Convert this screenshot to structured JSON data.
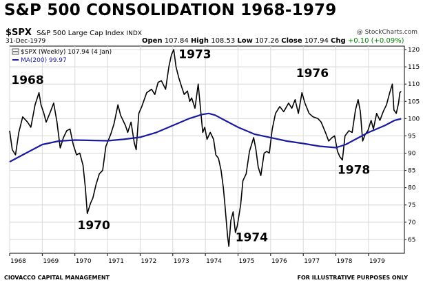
{
  "header": {
    "title": "S&P 500 CONSOLIDATION 1968-1979",
    "symbol": "$SPX",
    "name": "S&P 500 Large Cap Index",
    "exchange": "INDX",
    "credit": "@ StockCharts.com",
    "date": "31-Dec-1979",
    "open_label": "Open",
    "open": "107.84",
    "high_label": "High",
    "high": "108.53",
    "low_label": "Low",
    "low": "107.26",
    "close_label": "Close",
    "close": "107.94",
    "chg_label": "Chg",
    "chg": "+0.10 (+0.09%)"
  },
  "footer": {
    "left": "CIOVACCO CAPITAL MANAGEMENT",
    "right": "FOR ILLUSTRATIVE PURPOSES ONLY"
  },
  "colors": {
    "price": "#000000",
    "ma": "#1a1aa0",
    "grid": "#d8d8d8"
  },
  "chart_data": {
    "type": "line",
    "legend_position": "top-left",
    "grid": true,
    "xlim": [
      1968.0,
      1980.1
    ],
    "ylim": [
      61,
      121
    ],
    "x_ticks": [
      {
        "x": 1968.0,
        "label": "1968"
      },
      {
        "x": 1969.0,
        "label": "1969"
      },
      {
        "x": 1970.0,
        "label": "1970"
      },
      {
        "x": 1971.0,
        "label": "1971"
      },
      {
        "x": 1972.0,
        "label": "1972"
      },
      {
        "x": 1973.0,
        "label": "1973"
      },
      {
        "x": 1974.0,
        "label": "1974"
      },
      {
        "x": 1975.0,
        "label": "1975"
      },
      {
        "x": 1976.0,
        "label": "1976"
      },
      {
        "x": 1977.0,
        "label": "1977"
      },
      {
        "x": 1978.0,
        "label": "1978"
      },
      {
        "x": 1979.0,
        "label": "1979"
      }
    ],
    "y_ticks": [
      65,
      70,
      75,
      80,
      85,
      90,
      95,
      100,
      105,
      110,
      115,
      120
    ],
    "series": [
      {
        "name": "$SPX (Weekly) 107.94 (4 Jan)",
        "points": [
          [
            1968.0,
            96.5
          ],
          [
            1968.08,
            91.0
          ],
          [
            1968.18,
            89.5
          ],
          [
            1968.28,
            96.0
          ],
          [
            1968.4,
            100.5
          ],
          [
            1968.55,
            99.0
          ],
          [
            1968.65,
            97.5
          ],
          [
            1968.78,
            104.0
          ],
          [
            1968.9,
            107.5
          ],
          [
            1968.96,
            104.0
          ],
          [
            1969.05,
            101.5
          ],
          [
            1969.12,
            99.0
          ],
          [
            1969.25,
            102.0
          ],
          [
            1969.35,
            104.5
          ],
          [
            1969.45,
            99.0
          ],
          [
            1969.55,
            91.5
          ],
          [
            1969.65,
            94.5
          ],
          [
            1969.75,
            96.5
          ],
          [
            1969.85,
            97.0
          ],
          [
            1969.95,
            92.5
          ],
          [
            1970.05,
            89.5
          ],
          [
            1970.15,
            90.0
          ],
          [
            1970.25,
            86.5
          ],
          [
            1970.32,
            80.0
          ],
          [
            1970.38,
            72.5
          ],
          [
            1970.48,
            75.5
          ],
          [
            1970.55,
            77.0
          ],
          [
            1970.65,
            81.0
          ],
          [
            1970.75,
            84.0
          ],
          [
            1970.85,
            85.0
          ],
          [
            1970.95,
            92.0
          ],
          [
            1971.1,
            95.5
          ],
          [
            1971.2,
            98.5
          ],
          [
            1971.32,
            104.0
          ],
          [
            1971.4,
            101.0
          ],
          [
            1971.55,
            98.0
          ],
          [
            1971.62,
            96.0
          ],
          [
            1971.72,
            99.0
          ],
          [
            1971.82,
            93.0
          ],
          [
            1971.88,
            91.0
          ],
          [
            1971.96,
            101.5
          ],
          [
            1972.05,
            103.5
          ],
          [
            1972.2,
            107.5
          ],
          [
            1972.35,
            108.5
          ],
          [
            1972.45,
            107.0
          ],
          [
            1972.55,
            110.5
          ],
          [
            1972.65,
            111.0
          ],
          [
            1972.78,
            108.5
          ],
          [
            1972.88,
            115.0
          ],
          [
            1972.96,
            118.5
          ],
          [
            1973.03,
            120.0
          ],
          [
            1973.1,
            115.0
          ],
          [
            1973.18,
            112.0
          ],
          [
            1973.28,
            109.0
          ],
          [
            1973.35,
            107.0
          ],
          [
            1973.45,
            108.0
          ],
          [
            1973.52,
            105.0
          ],
          [
            1973.58,
            106.0
          ],
          [
            1973.68,
            103.0
          ],
          [
            1973.78,
            110.0
          ],
          [
            1973.85,
            103.0
          ],
          [
            1973.92,
            96.0
          ],
          [
            1973.98,
            97.5
          ],
          [
            1974.05,
            94.0
          ],
          [
            1974.15,
            96.0
          ],
          [
            1974.25,
            94.0
          ],
          [
            1974.32,
            89.5
          ],
          [
            1974.4,
            88.5
          ],
          [
            1974.48,
            85.0
          ],
          [
            1974.55,
            80.0
          ],
          [
            1974.6,
            75.0
          ],
          [
            1974.68,
            66.0
          ],
          [
            1974.72,
            63.0
          ],
          [
            1974.78,
            70.5
          ],
          [
            1974.85,
            73.0
          ],
          [
            1974.92,
            67.0
          ],
          [
            1974.98,
            69.0
          ],
          [
            1975.08,
            75.0
          ],
          [
            1975.15,
            82.0
          ],
          [
            1975.25,
            84.0
          ],
          [
            1975.35,
            90.5
          ],
          [
            1975.48,
            94.5
          ],
          [
            1975.55,
            91.0
          ],
          [
            1975.62,
            86.0
          ],
          [
            1975.7,
            83.5
          ],
          [
            1975.8,
            90.0
          ],
          [
            1975.88,
            90.5
          ],
          [
            1975.96,
            90.0
          ],
          [
            1976.05,
            97.0
          ],
          [
            1976.15,
            101.5
          ],
          [
            1976.28,
            103.5
          ],
          [
            1976.4,
            102.0
          ],
          [
            1976.55,
            104.5
          ],
          [
            1976.65,
            103.0
          ],
          [
            1976.75,
            105.5
          ],
          [
            1976.85,
            101.5
          ],
          [
            1976.96,
            107.5
          ],
          [
            1977.05,
            104.5
          ],
          [
            1977.18,
            101.5
          ],
          [
            1977.3,
            100.5
          ],
          [
            1977.45,
            100.0
          ],
          [
            1977.55,
            99.0
          ],
          [
            1977.68,
            96.0
          ],
          [
            1977.78,
            93.5
          ],
          [
            1977.88,
            94.5
          ],
          [
            1977.96,
            95.0
          ],
          [
            1978.05,
            90.5
          ],
          [
            1978.12,
            89.0
          ],
          [
            1978.2,
            88.0
          ],
          [
            1978.28,
            95.0
          ],
          [
            1978.4,
            96.5
          ],
          [
            1978.5,
            96.0
          ],
          [
            1978.6,
            102.5
          ],
          [
            1978.68,
            105.5
          ],
          [
            1978.75,
            102.0
          ],
          [
            1978.82,
            93.5
          ],
          [
            1978.9,
            95.5
          ],
          [
            1978.98,
            96.5
          ],
          [
            1979.08,
            99.5
          ],
          [
            1979.15,
            97.0
          ],
          [
            1979.25,
            101.5
          ],
          [
            1979.35,
            99.5
          ],
          [
            1979.45,
            102.0
          ],
          [
            1979.55,
            104.0
          ],
          [
            1979.65,
            107.5
          ],
          [
            1979.73,
            110.0
          ],
          [
            1979.78,
            102.5
          ],
          [
            1979.85,
            101.5
          ],
          [
            1979.92,
            104.5
          ],
          [
            1979.96,
            107.5
          ],
          [
            1980.0,
            107.94
          ]
        ]
      },
      {
        "name": "MA(200) 99.97",
        "points": [
          [
            1968.0,
            87.5
          ],
          [
            1968.5,
            90.0
          ],
          [
            1969.0,
            92.5
          ],
          [
            1969.5,
            93.5
          ],
          [
            1970.0,
            93.8
          ],
          [
            1970.5,
            93.7
          ],
          [
            1971.0,
            93.6
          ],
          [
            1971.5,
            94.0
          ],
          [
            1972.0,
            94.6
          ],
          [
            1972.5,
            96.0
          ],
          [
            1973.0,
            98.0
          ],
          [
            1973.5,
            100.0
          ],
          [
            1973.9,
            101.2
          ],
          [
            1974.1,
            101.5
          ],
          [
            1974.3,
            101.0
          ],
          [
            1974.6,
            99.5
          ],
          [
            1975.0,
            97.5
          ],
          [
            1975.5,
            95.5
          ],
          [
            1976.0,
            94.5
          ],
          [
            1976.5,
            93.5
          ],
          [
            1977.0,
            92.8
          ],
          [
            1977.5,
            92.0
          ],
          [
            1978.0,
            91.6
          ],
          [
            1978.3,
            92.5
          ],
          [
            1978.6,
            94.0
          ],
          [
            1979.0,
            96.0
          ],
          [
            1979.5,
            98.0
          ],
          [
            1979.8,
            99.5
          ],
          [
            1980.0,
            99.97
          ]
        ]
      }
    ],
    "annotations": [
      {
        "text": "1968",
        "x": 1968.05,
        "y": 110.0
      },
      {
        "text": "1970",
        "x": 1970.08,
        "y": 68.0
      },
      {
        "text": "1973",
        "x": 1973.18,
        "y": 117.5
      },
      {
        "text": "1974",
        "x": 1974.92,
        "y": 64.5
      },
      {
        "text": "1976",
        "x": 1976.78,
        "y": 112.0
      },
      {
        "text": "1978",
        "x": 1978.05,
        "y": 84.0
      }
    ]
  }
}
